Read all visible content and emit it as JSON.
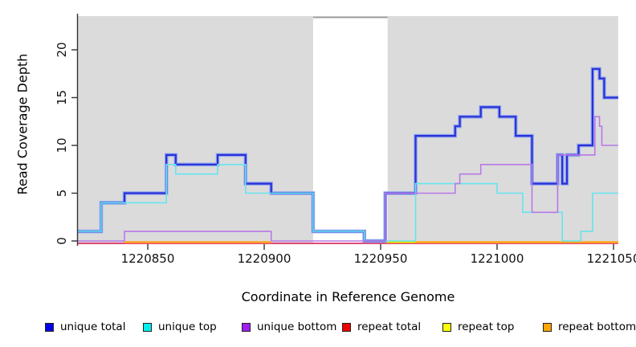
{
  "figure": {
    "x_axis": {
      "title": "Coordinate in Reference Genome",
      "tick_values": [
        1220850,
        1220900,
        1220950,
        1221000,
        1221050
      ],
      "tick_labels": [
        "1220850",
        "1220900",
        "1220950",
        "1221000",
        "1221050"
      ]
    },
    "y_axis": {
      "title": "Read Coverage Depth",
      "tick_values": [
        0,
        5,
        10,
        15,
        20
      ]
    },
    "plot_bg_color": "#DBDBDB",
    "gap_border_color": "#9A9A9A",
    "axis_color": "#333333"
  },
  "chart_data": {
    "type": "line",
    "style": "step-coverage",
    "x_range": [
      1220820,
      1221052
    ],
    "y_range": [
      0,
      23.5
    ],
    "coverage_regions": [
      [
        1220820,
        1220921
      ],
      [
        1220953,
        1221052
      ]
    ],
    "uncovered_gap": [
      1220921,
      1220953
    ],
    "series": [
      {
        "name": "repeat total",
        "color": "#DE3163",
        "width": 1.8,
        "dy": 3,
        "paths": [
          [
            [
              1220820,
              0
            ],
            [
              1221052,
              0
            ]
          ]
        ]
      },
      {
        "name": "repeat top",
        "color": "#E8E800",
        "width": 2.2,
        "dy": 1.5,
        "paths": [
          [
            [
              1220952,
              0
            ],
            [
              1221052,
              0
            ]
          ]
        ]
      },
      {
        "name": "repeat bottom",
        "color": "#FFA520",
        "width": 2.4,
        "dy": 1.5,
        "paths": [
          [
            [
              1220840,
              0
            ],
            [
              1220903,
              0
            ]
          ],
          [
            [
              1220965,
              0
            ],
            [
              1221052,
              0
            ]
          ]
        ]
      },
      {
        "name": "unique total",
        "color": "#2B2FD8",
        "halo_color": "#8FA8EE",
        "width": 2.2,
        "dy": 0,
        "paths": [
          [
            [
              1220820,
              1
            ],
            [
              1220830,
              4
            ],
            [
              1220840,
              5
            ],
            [
              1220858,
              9
            ],
            [
              1220862,
              8
            ],
            [
              1220880,
              9
            ],
            [
              1220892,
              6
            ],
            [
              1220903,
              5
            ],
            [
              1220921,
              1
            ],
            [
              1220943,
              0
            ],
            [
              1220952,
              5
            ],
            [
              1220965,
              11
            ],
            [
              1220982,
              12
            ],
            [
              1220984,
              13
            ],
            [
              1220993,
              14
            ],
            [
              1221001,
              13
            ],
            [
              1221008,
              11
            ],
            [
              1221015,
              6
            ],
            [
              1221026,
              9
            ],
            [
              1221028,
              6
            ],
            [
              1221030,
              9
            ],
            [
              1221035,
              10
            ],
            [
              1221041,
              18
            ],
            [
              1221044,
              17
            ],
            [
              1221046,
              15
            ],
            [
              1221052,
              15
            ]
          ]
        ]
      },
      {
        "name": "unique top",
        "color": "#66E4EE",
        "width": 1.6,
        "dy": 0,
        "paths": [
          [
            [
              1220820,
              1
            ],
            [
              1220830,
              4
            ],
            [
              1220858,
              8
            ],
            [
              1220862,
              7
            ],
            [
              1220880,
              8
            ],
            [
              1220892,
              5
            ],
            [
              1220921,
              1
            ],
            [
              1220943,
              0
            ],
            [
              1220965,
              6
            ],
            [
              1221000,
              5
            ],
            [
              1221011,
              3
            ],
            [
              1221028,
              0
            ],
            [
              1221036,
              1
            ],
            [
              1221041,
              5
            ],
            [
              1221052,
              5
            ]
          ]
        ]
      },
      {
        "name": "unique bottom",
        "color": "#B879E6",
        "width": 1.6,
        "dy": 0,
        "paths": [
          [
            [
              1220820,
              0
            ],
            [
              1220840,
              1
            ],
            [
              1220903,
              0
            ],
            [
              1220952,
              5
            ],
            [
              1220982,
              6
            ],
            [
              1220984,
              7
            ],
            [
              1220993,
              8
            ],
            [
              1221015,
              3
            ],
            [
              1221026,
              9
            ],
            [
              1221042,
              13
            ],
            [
              1221044,
              12
            ],
            [
              1221045,
              10
            ],
            [
              1221052,
              10
            ]
          ]
        ]
      }
    ],
    "legend": [
      {
        "label": "unique total",
        "color": "#0000EE"
      },
      {
        "label": "unique top",
        "color": "#00EEEE"
      },
      {
        "label": "unique bottom",
        "color": "#A020F0"
      },
      {
        "label": "repeat total",
        "color": "#EE0000"
      },
      {
        "label": "repeat top",
        "color": "#FFFF00"
      },
      {
        "label": "repeat bottom",
        "color": "#FFA500"
      }
    ]
  }
}
